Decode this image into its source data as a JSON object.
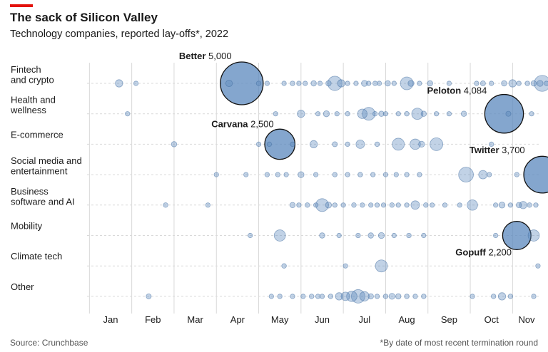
{
  "header": {
    "title": "The sack of Silicon Valley",
    "subtitle": "Technology companies, reported lay-offs*, 2022"
  },
  "footer": {
    "source": "Source: Crunchbase",
    "note": "*By date of most recent termination round"
  },
  "colors": {
    "accent": "#e3120b",
    "bubble_fill": "#5b88bd",
    "bubble_stroke": "#3f6b9e",
    "grid": "#d9d9d9"
  },
  "chart_data": {
    "type": "scatter",
    "encoding": "bubble area proportional to lay-offs",
    "title": "The sack of Silicon Valley",
    "subtitle": "Technology companies, reported lay-offs*, 2022",
    "x_axis": {
      "ticks": [
        "Jan",
        "Feb",
        "Mar",
        "Apr",
        "May",
        "Jun",
        "Jul",
        "Aug",
        "Sep",
        "Oct",
        "Nov"
      ],
      "range": [
        "Jan",
        "Nov"
      ]
    },
    "categories": [
      "Fintech\nand crypto",
      "Health and\nwellness",
      "E-commerce",
      "Social media and\nentertainment",
      "Business\nsoftware and AI",
      "Mobility",
      "Climate tech",
      "Other"
    ],
    "annotations": [
      {
        "company": "Better",
        "value": "5,000",
        "category": 0,
        "month": 4.1,
        "layoffs": 5000
      },
      {
        "company": "Peloton",
        "value": "4,084",
        "category": 1,
        "month": 10.3,
        "layoffs": 4084
      },
      {
        "company": "Carvana",
        "value": "2,500",
        "category": 2,
        "month": 5.0,
        "layoffs": 2500
      },
      {
        "company": "Twitter",
        "value": "3,700",
        "category": 3,
        "month": 11.2,
        "layoffs": 3700
      },
      {
        "company": "Gopuff",
        "value": "2,200",
        "category": 5,
        "month": 10.6,
        "layoffs": 2200
      }
    ],
    "series": [
      {
        "category": 0,
        "points": [
          [
            1.2,
            150
          ],
          [
            1.6,
            30
          ],
          [
            3.8,
            120
          ],
          [
            4.1,
            5000
          ],
          [
            4.5,
            60
          ],
          [
            4.7,
            40
          ],
          [
            5.1,
            40
          ],
          [
            5.3,
            60
          ],
          [
            5.45,
            30
          ],
          [
            5.6,
            40
          ],
          [
            5.8,
            80
          ],
          [
            5.95,
            50
          ],
          [
            6.15,
            80
          ],
          [
            6.3,
            560
          ],
          [
            6.45,
            150
          ],
          [
            6.6,
            40
          ],
          [
            6.8,
            30
          ],
          [
            7.0,
            100
          ],
          [
            7.1,
            40
          ],
          [
            7.25,
            50
          ],
          [
            7.35,
            40
          ],
          [
            7.55,
            80
          ],
          [
            7.7,
            40
          ],
          [
            8.0,
            450
          ],
          [
            8.1,
            100
          ],
          [
            8.3,
            40
          ],
          [
            8.55,
            80
          ],
          [
            9.0,
            30
          ],
          [
            9.65,
            40
          ],
          [
            9.8,
            70
          ],
          [
            10.0,
            50
          ],
          [
            10.3,
            80
          ],
          [
            10.5,
            150
          ],
          [
            10.65,
            40
          ],
          [
            10.85,
            60
          ],
          [
            11.0,
            80
          ],
          [
            11.15,
            100
          ],
          [
            11.2,
            700
          ],
          [
            11.3,
            30
          ]
        ]
      },
      {
        "category": 1,
        "points": [
          [
            1.4,
            40
          ],
          [
            4.9,
            30
          ],
          [
            5.5,
            150
          ],
          [
            5.9,
            40
          ],
          [
            6.1,
            100
          ],
          [
            6.35,
            40
          ],
          [
            6.6,
            60
          ],
          [
            6.95,
            250
          ],
          [
            7.1,
            450
          ],
          [
            7.25,
            60
          ],
          [
            7.4,
            80
          ],
          [
            7.5,
            30
          ],
          [
            7.8,
            40
          ],
          [
            8.0,
            60
          ],
          [
            8.25,
            350
          ],
          [
            8.4,
            80
          ],
          [
            8.7,
            30
          ],
          [
            9.0,
            40
          ],
          [
            9.35,
            80
          ],
          [
            10.3,
            4084
          ],
          [
            10.4,
            70
          ],
          [
            10.95,
            30
          ]
        ]
      },
      {
        "category": 2,
        "points": [
          [
            2.5,
            80
          ],
          [
            4.5,
            30
          ],
          [
            4.75,
            40
          ],
          [
            5.0,
            2500
          ],
          [
            5.3,
            40
          ],
          [
            5.8,
            150
          ],
          [
            6.3,
            70
          ],
          [
            6.6,
            30
          ],
          [
            6.9,
            200
          ],
          [
            7.3,
            60
          ],
          [
            7.8,
            400
          ],
          [
            8.2,
            300
          ],
          [
            8.35,
            100
          ],
          [
            8.7,
            450
          ],
          [
            10.0,
            40
          ]
        ]
      },
      {
        "category": 3,
        "points": [
          [
            3.5,
            20
          ],
          [
            4.2,
            20
          ],
          [
            4.7,
            40
          ],
          [
            4.95,
            50
          ],
          [
            5.15,
            40
          ],
          [
            5.5,
            100
          ],
          [
            5.85,
            30
          ],
          [
            6.3,
            40
          ],
          [
            6.6,
            40
          ],
          [
            6.9,
            60
          ],
          [
            7.2,
            30
          ],
          [
            7.5,
            40
          ],
          [
            7.75,
            30
          ],
          [
            8.0,
            40
          ],
          [
            8.3,
            40
          ],
          [
            9.4,
            600
          ],
          [
            9.8,
            200
          ],
          [
            9.95,
            40
          ],
          [
            10.6,
            30
          ],
          [
            11.2,
            3700
          ]
        ]
      },
      {
        "category": 4,
        "points": [
          [
            2.3,
            60
          ],
          [
            3.3,
            30
          ],
          [
            5.3,
            80
          ],
          [
            5.45,
            40
          ],
          [
            5.65,
            60
          ],
          [
            5.85,
            40
          ],
          [
            6.0,
            450
          ],
          [
            6.15,
            100
          ],
          [
            6.3,
            50
          ],
          [
            6.5,
            40
          ],
          [
            6.75,
            60
          ],
          [
            6.95,
            40
          ],
          [
            7.15,
            30
          ],
          [
            7.3,
            40
          ],
          [
            7.45,
            30
          ],
          [
            7.65,
            60
          ],
          [
            7.8,
            30
          ],
          [
            8.0,
            40
          ],
          [
            8.2,
            200
          ],
          [
            8.45,
            60
          ],
          [
            8.6,
            40
          ],
          [
            8.9,
            40
          ],
          [
            9.25,
            30
          ],
          [
            9.55,
            300
          ],
          [
            10.1,
            40
          ],
          [
            10.25,
            100
          ],
          [
            10.45,
            40
          ],
          [
            10.65,
            80
          ],
          [
            10.75,
            150
          ],
          [
            10.9,
            60
          ],
          [
            11.05,
            30
          ]
        ]
      },
      {
        "category": 5,
        "points": [
          [
            4.3,
            40
          ],
          [
            5.0,
            350
          ],
          [
            6.0,
            80
          ],
          [
            6.4,
            40
          ],
          [
            6.85,
            60
          ],
          [
            7.15,
            80
          ],
          [
            7.4,
            100
          ],
          [
            7.7,
            40
          ],
          [
            8.05,
            60
          ],
          [
            8.4,
            30
          ],
          [
            10.1,
            40
          ],
          [
            10.6,
            2200
          ],
          [
            11.0,
            350
          ]
        ]
      },
      {
        "category": 6,
        "points": [
          [
            5.1,
            60
          ],
          [
            6.55,
            30
          ],
          [
            7.4,
            400
          ],
          [
            11.1,
            20
          ]
        ]
      },
      {
        "category": 7,
        "points": [
          [
            1.9,
            70
          ],
          [
            4.8,
            50
          ],
          [
            5.0,
            40
          ],
          [
            5.3,
            40
          ],
          [
            5.55,
            40
          ],
          [
            5.75,
            60
          ],
          [
            5.9,
            40
          ],
          [
            6.0,
            50
          ],
          [
            6.2,
            60
          ],
          [
            6.4,
            150
          ],
          [
            6.55,
            200
          ],
          [
            6.7,
            300
          ],
          [
            6.85,
            500
          ],
          [
            7.0,
            250
          ],
          [
            7.15,
            80
          ],
          [
            7.3,
            40
          ],
          [
            7.5,
            60
          ],
          [
            7.65,
            100
          ],
          [
            7.8,
            80
          ],
          [
            8.0,
            60
          ],
          [
            8.2,
            30
          ],
          [
            8.4,
            60
          ],
          [
            9.55,
            40
          ],
          [
            10.05,
            60
          ],
          [
            10.25,
            150
          ],
          [
            10.45,
            60
          ],
          [
            11.0,
            40
          ]
        ]
      }
    ]
  }
}
